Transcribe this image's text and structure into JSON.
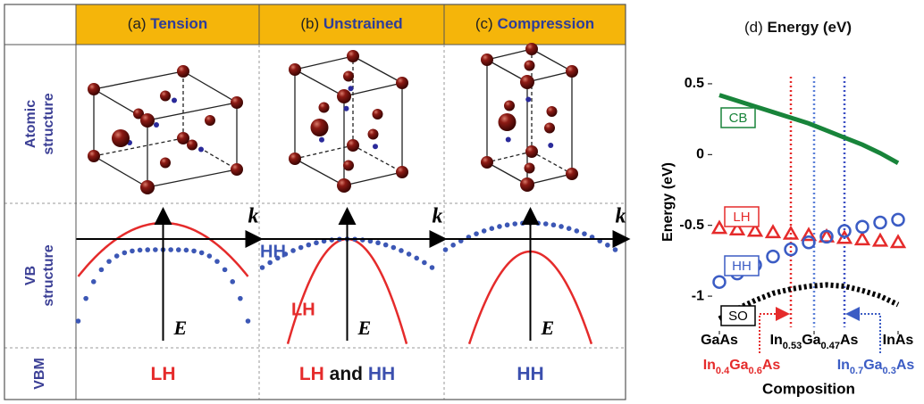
{
  "table": {
    "header": [
      {
        "label": "(a)",
        "title": "Tension"
      },
      {
        "label": "(b)",
        "title": "Unstrained"
      },
      {
        "label": "(c)",
        "title": "Compression"
      }
    ],
    "rows": [
      [
        "Atomic",
        "structure"
      ],
      [
        "VB",
        "structure"
      ],
      [
        "VBM"
      ]
    ],
    "diagram_labels": {
      "k": "k",
      "E": "E",
      "HH": "HH",
      "LH": "LH"
    },
    "vbm": [
      [
        "LH"
      ],
      [
        "LH",
        "and",
        "HH"
      ],
      [
        "HH"
      ]
    ]
  },
  "chart_data": {
    "type": "line",
    "label": "(d)",
    "title": "Energy (eV)",
    "y_label": "Energy (eV)",
    "x_label": "Composition",
    "x": [
      0,
      0.1,
      0.2,
      0.3,
      0.4,
      0.5,
      0.6,
      0.7,
      0.8,
      0.9,
      1
    ],
    "series": [
      {
        "name": "CB",
        "color": "#18843a",
        "style": "line",
        "values": [
          0.42,
          0.38,
          0.34,
          0.3,
          0.26,
          0.22,
          0.17,
          0.12,
          0.07,
          0.01,
          -0.06
        ]
      },
      {
        "name": "LH",
        "color": "#e52b2b",
        "style": "triangle",
        "values": [
          -0.52,
          -0.53,
          -0.54,
          -0.55,
          -0.56,
          -0.57,
          -0.58,
          -0.59,
          -0.6,
          -0.61,
          -0.62
        ]
      },
      {
        "name": "HH",
        "color": "#3b5cc4",
        "style": "circle",
        "values": [
          -0.9,
          -0.84,
          -0.78,
          -0.72,
          -0.67,
          -0.62,
          -0.58,
          -0.54,
          -0.51,
          -0.48,
          -0.46
        ]
      },
      {
        "name": "SO",
        "color": "#000000",
        "style": "dotted",
        "values": [
          -1.16,
          -1.09,
          -1.03,
          -0.98,
          -0.95,
          -0.93,
          -0.92,
          -0.93,
          -0.96,
          -1.0,
          -1.06
        ]
      }
    ],
    "xlim": [
      0,
      1
    ],
    "ylim": [
      -1.22,
      0.55
    ],
    "xticks": [
      {
        "value": 0,
        "label": "GaAs"
      },
      {
        "value": 0.53,
        "label": "In0.53Ga0.47As"
      },
      {
        "value": 1,
        "label": "InAs"
      }
    ],
    "yticks": [
      -1,
      -0.5,
      0,
      0.5
    ],
    "vlines": [
      {
        "x": 0.4,
        "color": "#e52b2b"
      },
      {
        "x": 0.53,
        "color": "#5a7fd8"
      },
      {
        "x": 0.7,
        "color": "#3b4fc4"
      }
    ],
    "annotations": [
      {
        "text": "In0.4Ga0.6As",
        "color": "#e52b2b",
        "x": 0.4
      },
      {
        "text": "In0.7Ga0.3As",
        "color": "#3b5cc4",
        "x": 0.7
      }
    ]
  }
}
